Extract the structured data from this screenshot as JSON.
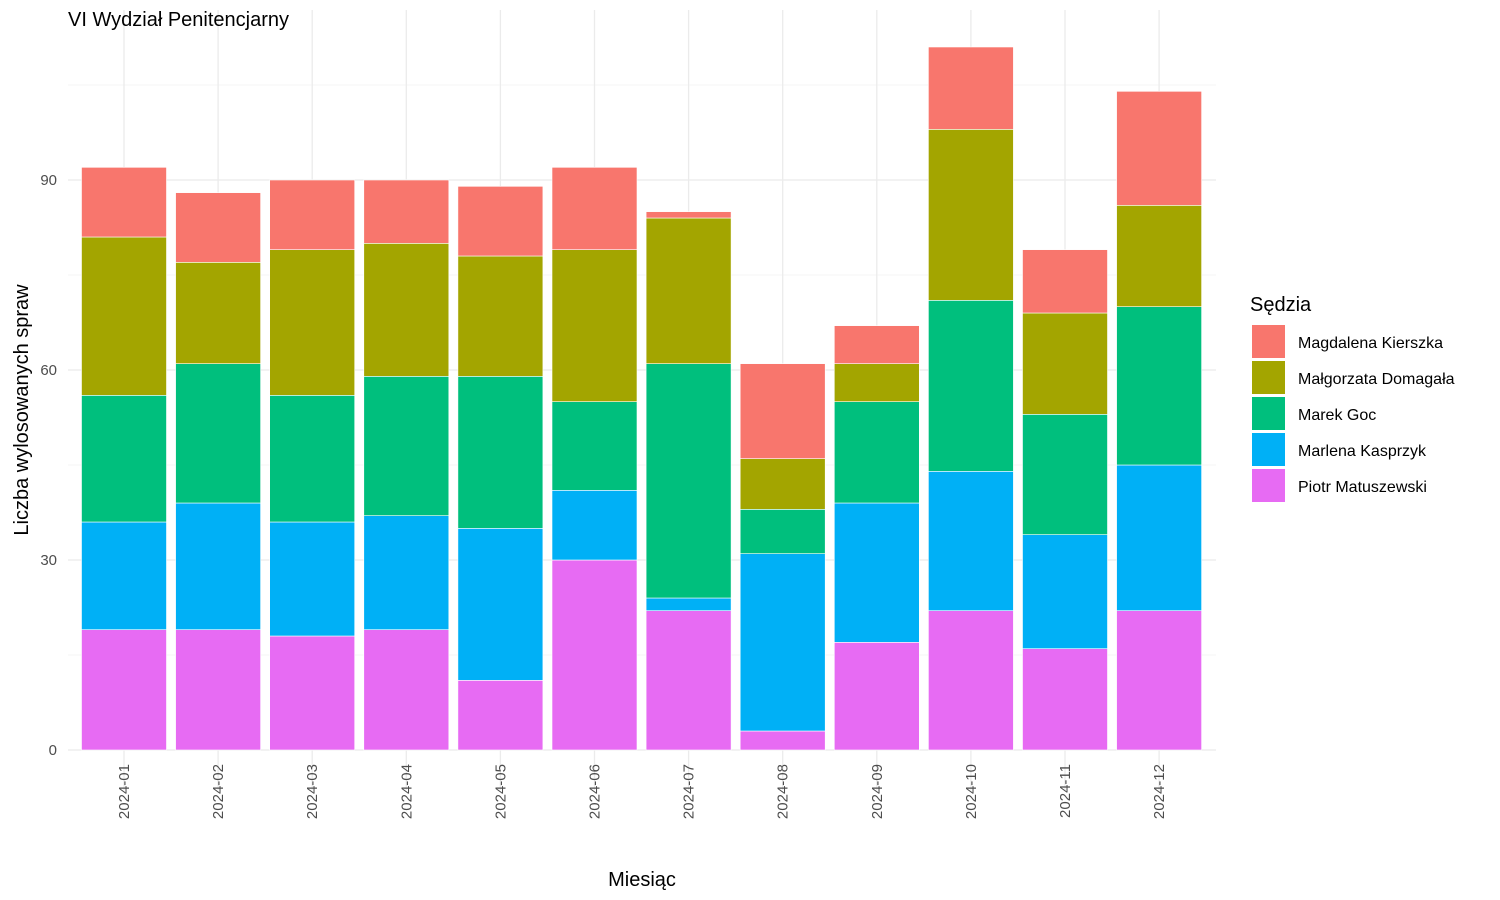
{
  "chart_data": {
    "type": "bar",
    "stacked": true,
    "title": "VI Wydział Penitencjarny",
    "xlabel": "Miesiąc",
    "ylabel": "Liczba wylosowanych spraw",
    "categories": [
      "2024-01",
      "2024-02",
      "2024-03",
      "2024-04",
      "2024-05",
      "2024-06",
      "2024-07",
      "2024-08",
      "2024-09",
      "2024-10",
      "2024-11",
      "2024-12"
    ],
    "ylim": [
      0,
      116
    ],
    "yticks": [
      0,
      30,
      60,
      90
    ],
    "grid": true,
    "legend": {
      "title": "Sędzia",
      "position": "right"
    },
    "series": [
      {
        "name": "Piotr Matuszewski",
        "color": "#E76BF3",
        "values": [
          19,
          19,
          18,
          19,
          11,
          30,
          22,
          3,
          17,
          22,
          16,
          22
        ]
      },
      {
        "name": "Marlena Kasprzyk",
        "color": "#00B0F6",
        "values": [
          17,
          20,
          18,
          18,
          24,
          11,
          2,
          28,
          22,
          22,
          18,
          23
        ]
      },
      {
        "name": "Marek Goc",
        "color": "#00BF7D",
        "values": [
          20,
          22,
          20,
          22,
          24,
          14,
          37,
          7,
          16,
          27,
          19,
          25
        ]
      },
      {
        "name": "Małgorzata Domagała",
        "color": "#A3A500",
        "values": [
          25,
          16,
          23,
          21,
          19,
          24,
          23,
          8,
          6,
          27,
          16,
          16
        ]
      },
      {
        "name": "Magdalena Kierszka",
        "color": "#F8766D",
        "values": [
          11,
          11,
          11,
          10,
          11,
          13,
          1,
          15,
          6,
          13,
          10,
          18
        ]
      }
    ]
  }
}
